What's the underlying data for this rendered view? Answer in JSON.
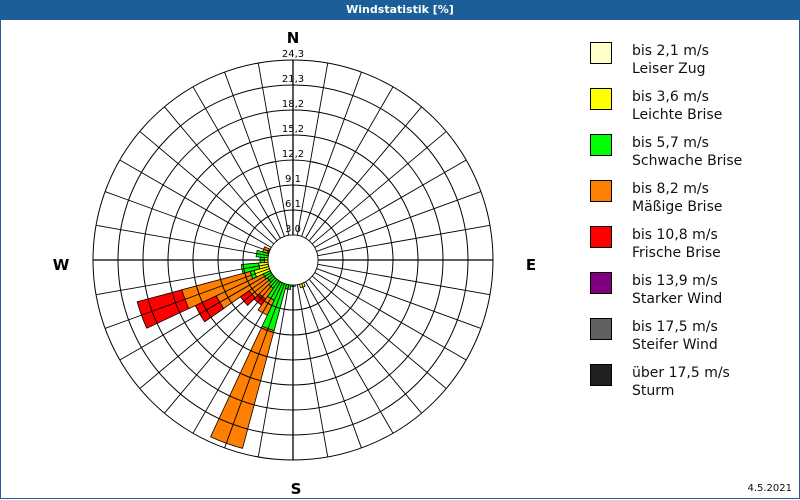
{
  "title": "Windstatistik [%]",
  "date": "4.5.2021",
  "cardinals": {
    "n": "N",
    "e": "E",
    "s": "S",
    "w": "W"
  },
  "legend": [
    {
      "range": "bis 2,1 m/s",
      "name": "Leiser Zug",
      "color": "#ffffc8"
    },
    {
      "range": "bis 3,6 m/s",
      "name": "Leichte Brise",
      "color": "#ffff00"
    },
    {
      "range": "bis 5,7 m/s",
      "name": "Schwache Brise",
      "color": "#00ff00"
    },
    {
      "range": "bis 8,2 m/s",
      "name": "Mäßige Brise",
      "color": "#ff8000"
    },
    {
      "range": "bis 10,8 m/s",
      "name": "Frische Brise",
      "color": "#ff0000"
    },
    {
      "range": "bis 13,9 m/s",
      "name": "Starker Wind",
      "color": "#800080"
    },
    {
      "range": "bis 17,5 m/s",
      "name": "Steifer Wind",
      "color": "#606060"
    },
    {
      "range": "über 17,5 m/s",
      "name": "Sturm",
      "color": "#202020"
    }
  ],
  "chart_data": {
    "type": "polar-bar (wind rose)",
    "title": "Windstatistik [%]",
    "ring_labels": [
      "3,0",
      "6,1",
      "9,1",
      "12,2",
      "15,2",
      "18,2",
      "21,3",
      "24,3"
    ],
    "rmax": 24.3,
    "sector_width_deg": 10,
    "series_order": [
      "bis 2,1 m/s",
      "bis 3,6 m/s",
      "bis 5,7 m/s",
      "bis 8,2 m/s",
      "bis 10,8 m/s",
      "bis 13,9 m/s",
      "bis 17,5 m/s",
      "über 17,5 m/s"
    ],
    "sectors": [
      {
        "dir": 160,
        "cum": [
          0.8,
          3.5
        ]
      },
      {
        "dir": 170,
        "cum": [
          0.6,
          1.8,
          2.8
        ]
      },
      {
        "dir": 180,
        "cum": [
          0.6,
          1.8,
          3.2
        ]
      },
      {
        "dir": 190,
        "cum": [
          0.6,
          2.0,
          3.6
        ]
      },
      {
        "dir": 200,
        "cum": [
          0.6,
          2.5,
          8.9,
          23.7
        ]
      },
      {
        "dir": 210,
        "cum": [
          0.6,
          2.0,
          5.4,
          7.4
        ]
      },
      {
        "dir": 220,
        "cum": [
          0.6,
          2.0,
          4.2,
          5.8,
          6.7
        ]
      },
      {
        "dir": 230,
        "cum": [
          0.6,
          2.2,
          3.8,
          6.5,
          7.8
        ]
      },
      {
        "dir": 240,
        "cum": [
          0.6,
          2.5,
          4.0,
          10.3,
          13.1
        ]
      },
      {
        "dir": 250,
        "cum": [
          0.7,
          4.9,
          5.4,
          14.0,
          19.6
        ]
      },
      {
        "dir": 260,
        "cum": [
          0.7,
          4.2,
          6.3
        ]
      },
      {
        "dir": 270,
        "cum": [
          0.6,
          3.5,
          4.0
        ]
      },
      {
        "dir": 280,
        "cum": [
          0.6,
          2.8,
          4.5
        ]
      },
      {
        "dir": 290,
        "cum": [
          0.5,
          2.0,
          3.2,
          3.8
        ]
      },
      {
        "dir": 300,
        "cum": [
          0.5,
          1.6,
          2.4
        ]
      },
      {
        "dir": 310,
        "cum": [
          0.4,
          1.2,
          1.6
        ]
      },
      {
        "dir": 320,
        "cum": [
          0.3,
          0.8
        ]
      },
      {
        "dir": 330,
        "cum": [
          0.3,
          0.6
        ]
      },
      {
        "dir": 140,
        "cum": [
          0.4,
          1.0
        ]
      },
      {
        "dir": 150,
        "cum": [
          0.5,
          1.8
        ]
      }
    ]
  }
}
